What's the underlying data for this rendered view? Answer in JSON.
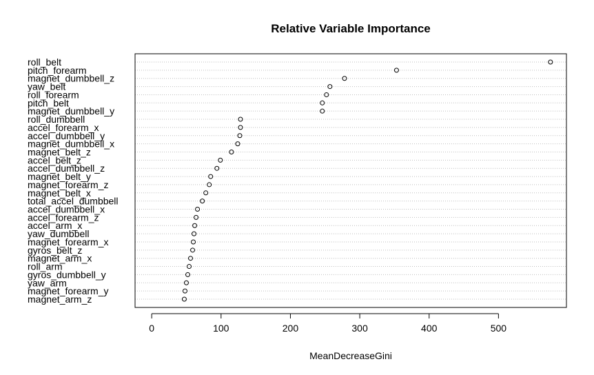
{
  "chart_data": {
    "type": "scatter",
    "title": "Relative Variable Importance",
    "xlabel": "MeanDecreaseGini",
    "ylabel": "",
    "xlim": [
      -24,
      598
    ],
    "xticks": [
      0,
      100,
      200,
      300,
      400,
      500
    ],
    "grid": "horizontal dotted",
    "legend": "none",
    "categories": [
      "roll_belt",
      "pitch_forearm",
      "magnet_dumbbell_z",
      "yaw_belt",
      "roll_forearm",
      "pitch_belt",
      "magnet_dumbbell_y",
      "roll_dumbbell",
      "accel_forearm_x",
      "accel_dumbbell_y",
      "magnet_dumbbell_x",
      "magnet_belt_z",
      "accel_belt_z",
      "accel_dumbbell_z",
      "magnet_belt_y",
      "magnet_forearm_z",
      "magnet_belt_x",
      "total_accel_dumbbell",
      "accel_dumbbell_x",
      "accel_forearm_z",
      "accel_arm_x",
      "yaw_dumbbell",
      "magnet_forearm_x",
      "gyros_belt_z",
      "magnet_arm_x",
      "roll_arm",
      "gyros_dumbbell_y",
      "yaw_arm",
      "magnet_forearm_y",
      "magnet_arm_z"
    ],
    "values": [
      575,
      353,
      278,
      257,
      252,
      246,
      246,
      128,
      128,
      127,
      124,
      115,
      99,
      94,
      85,
      83,
      78,
      73,
      66,
      64,
      62,
      61,
      60,
      59,
      56,
      54,
      52,
      50,
      48,
      47
    ],
    "marker_color": "#000000",
    "grid_color": "#bebebe"
  }
}
